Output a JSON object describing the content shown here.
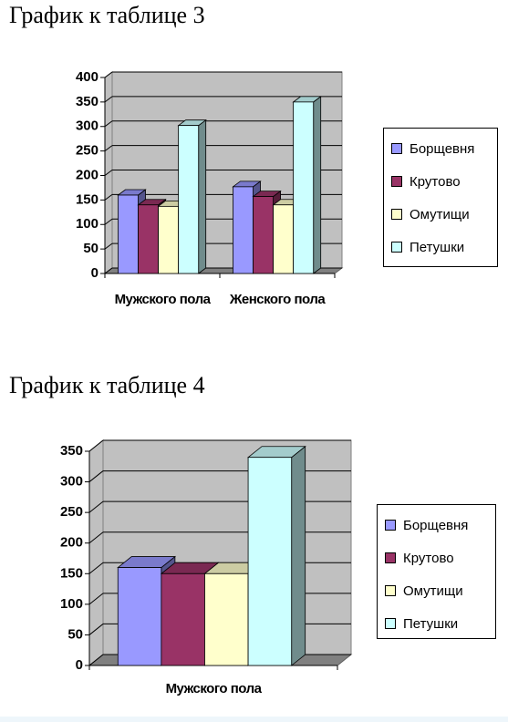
{
  "chart_data": [
    {
      "type": "bar3d",
      "title": "График к таблице 3",
      "categories": [
        "Мужского пола",
        "Женского пола"
      ],
      "series": [
        {
          "name": "Борщевня",
          "color": "#9999ff",
          "values": [
            160,
            177
          ]
        },
        {
          "name": "Крутово",
          "color": "#993366",
          "values": [
            140,
            157
          ]
        },
        {
          "name": "Омутищи",
          "color": "#ffffcc",
          "values": [
            137,
            140
          ]
        },
        {
          "name": "Петушки",
          "color": "#ccffff",
          "values": [
            302,
            350
          ]
        }
      ],
      "ylim": [
        0,
        400
      ],
      "yticks": [
        0,
        50,
        100,
        150,
        200,
        250,
        300,
        350,
        400
      ],
      "grid": true,
      "legend": "right"
    },
    {
      "type": "bar3d",
      "title": "График к таблице 4",
      "categories": [
        "Мужского пола"
      ],
      "series": [
        {
          "name": "Борщевня",
          "color": "#9999ff",
          "values": [
            160
          ]
        },
        {
          "name": "Крутово",
          "color": "#993366",
          "values": [
            150
          ]
        },
        {
          "name": "Омутищи",
          "color": "#ffffcc",
          "values": [
            150
          ]
        },
        {
          "name": "Петушки",
          "color": "#ccffff",
          "values": [
            340
          ]
        }
      ],
      "ylim": [
        0,
        350
      ],
      "yticks": [
        0,
        50,
        100,
        150,
        200,
        250,
        300,
        350
      ],
      "grid": true,
      "legend": "right"
    }
  ]
}
